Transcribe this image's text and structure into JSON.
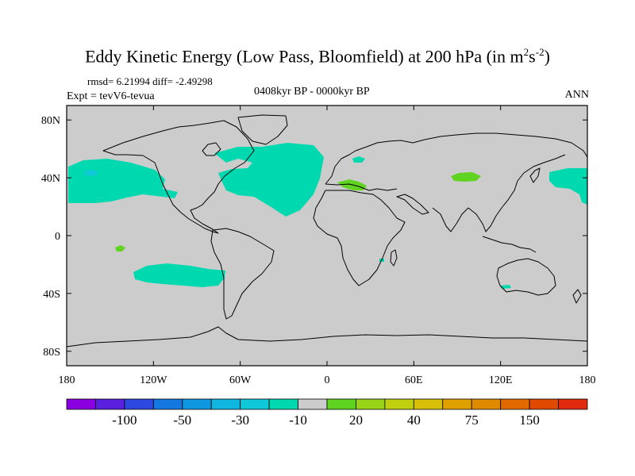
{
  "title": {
    "main": "Eddy Kinetic Energy (Low Pass, Bloomfield) at 200 hPa (in m",
    "sup1": "2",
    "mid": "s",
    "sup2": "-2",
    "close": ")"
  },
  "stats": "rmsd= 6.21994 diff= -2.49298",
  "expt": "Expt = tevV6-tevua",
  "period": "0408kyr BP - 0000kyr BP",
  "season": "ANN",
  "axes": {
    "lat_labels": [
      "80N",
      "40N",
      "0",
      "40S",
      "80S"
    ],
    "lat_values": [
      80,
      40,
      0,
      -40,
      -80
    ],
    "lon_labels": [
      "180",
      "120W",
      "60W",
      "0",
      "60E",
      "120E",
      "180"
    ],
    "lon_values": [
      -180,
      -120,
      -60,
      0,
      60,
      120,
      180
    ],
    "lat_range": [
      -90,
      90
    ],
    "lon_range": [
      -180,
      180
    ]
  },
  "colors": {
    "land_ocean_background": "#cccccc",
    "negative_10": "#00d9b0",
    "negative_30": "#10c8d8",
    "positive_10": "#5fd31f",
    "coast": "#000000"
  },
  "colorbar": {
    "colors": [
      "#8a00e0",
      "#5a20e0",
      "#2d48e0",
      "#1478e0",
      "#0f98e0",
      "#10b5e0",
      "#10c8d8",
      "#00d9b0",
      "#cccccc",
      "#5fd31f",
      "#98d318",
      "#c0d010",
      "#d8c008",
      "#e0a000",
      "#e08a00",
      "#e06a00",
      "#e04a00",
      "#e02a10"
    ],
    "labels": [
      "-100",
      "-50",
      "-30",
      "-10",
      "20",
      "40",
      "75",
      "150"
    ]
  },
  "chart_data": {
    "type": "map",
    "variable": "Eddy Kinetic Energy difference at 200 hPa",
    "units": "m2s-2",
    "anomaly_regions": [
      {
        "region": "North Atlantic",
        "class": "-10 to -30",
        "color": "#00d9b0"
      },
      {
        "region": "North Pacific (east of date line)",
        "class": "-10 to -30",
        "color": "#00d9b0"
      },
      {
        "region": "North Pacific (west of date line)",
        "class": "-10 to -30",
        "color": "#00d9b0"
      },
      {
        "region": "South Pacific",
        "class": "-10 to -30",
        "color": "#00d9b0"
      },
      {
        "region": "Central Asia",
        "class": "10 to 20",
        "color": "#5fd31f"
      },
      {
        "region": "Mediterranean",
        "class": "10 to 20",
        "color": "#5fd31f"
      },
      {
        "region": "Tropical Pacific (small)",
        "class": "10 to 20",
        "color": "#5fd31f"
      }
    ]
  }
}
